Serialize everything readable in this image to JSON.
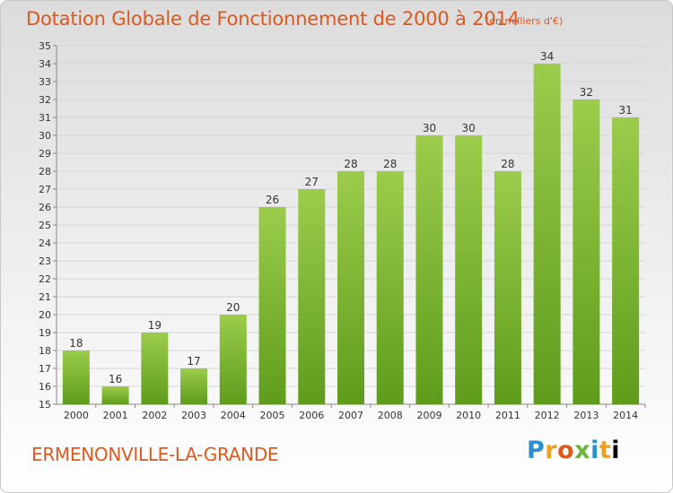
{
  "header": {
    "title": "Dotation Globale de Fonctionnement de 2000 à 2014",
    "unit_note": "(en milliers d'€)"
  },
  "footer": {
    "commune": "ERMENONVILLE-LA-GRANDE",
    "logo_text": "Proxiti"
  },
  "colors": {
    "title": "#e0581c",
    "bar_light": "#9ccc4c",
    "bar_dark": "#5f9c1c"
  },
  "chart_data": {
    "type": "bar",
    "title": "Dotation Globale de Fonctionnement de 2000 à 2014",
    "subtitle": "(en milliers d'€)",
    "xlabel": "",
    "ylabel": "",
    "categories": [
      "2000",
      "2001",
      "2002",
      "2003",
      "2004",
      "2005",
      "2006",
      "2007",
      "2008",
      "2009",
      "2010",
      "2011",
      "2012",
      "2013",
      "2014"
    ],
    "values": [
      18,
      16,
      19,
      17,
      20,
      26,
      27,
      28,
      28,
      30,
      30,
      28,
      34,
      32,
      31
    ],
    "ylim": [
      15,
      35
    ],
    "yticks": [
      15,
      16,
      17,
      18,
      19,
      20,
      21,
      22,
      23,
      24,
      25,
      26,
      27,
      28,
      29,
      30,
      31,
      32,
      33,
      34,
      35
    ],
    "grid": true,
    "legend": "none"
  }
}
